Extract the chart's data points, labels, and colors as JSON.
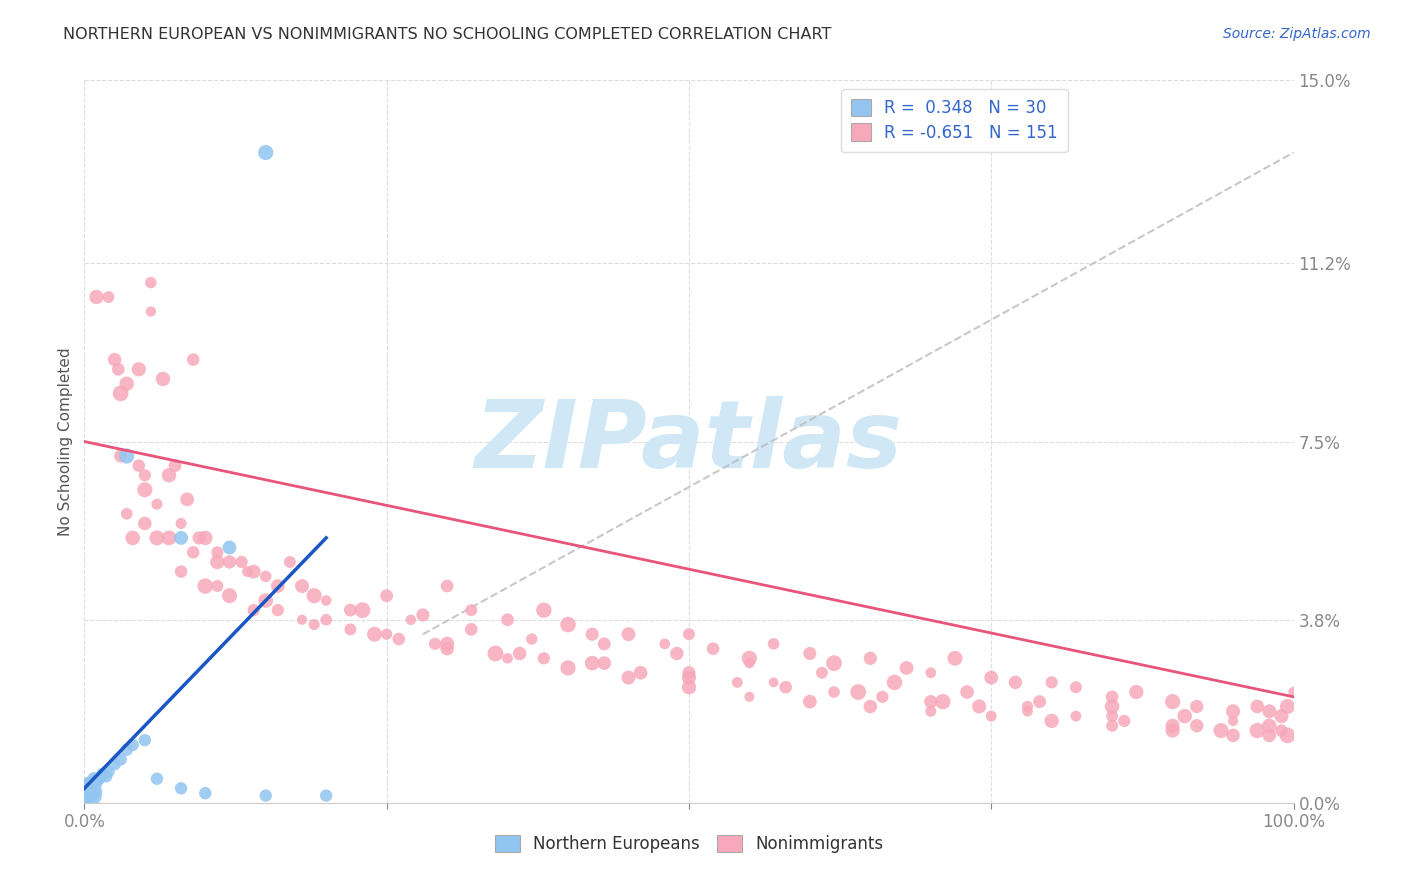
{
  "title": "NORTHERN EUROPEAN VS NONIMMIGRANTS NO SCHOOLING COMPLETED CORRELATION CHART",
  "source": "Source: ZipAtlas.com",
  "ylabel": "No Schooling Completed",
  "ytick_values": [
    0.0,
    3.8,
    7.5,
    11.2,
    15.0
  ],
  "ytick_labels": [
    "0.0%",
    "3.8%",
    "7.5%",
    "11.2%",
    "15.0%"
  ],
  "xlim": [
    0.0,
    100.0
  ],
  "ylim": [
    0.0,
    15.0
  ],
  "blue_color": "#92C5F0",
  "pink_color": "#F7A8BA",
  "blue_line_color": "#1A56C4",
  "pink_line_color": "#E8547A",
  "dashed_line_color": "#BBBBBB",
  "axis_label_color": "#3366CC",
  "title_color": "#333333",
  "watermark_text": "ZIPatlas",
  "watermark_color": "#D0E8F5",
  "blue_R": 0.348,
  "blue_N": 30,
  "pink_R": -0.651,
  "pink_N": 151,
  "blue_line_x": [
    0.0,
    20.0
  ],
  "blue_line_y": [
    0.3,
    5.5
  ],
  "pink_line_x": [
    0.0,
    100.0
  ],
  "pink_line_y": [
    7.5,
    2.2
  ],
  "dashed_line_x": [
    28.0,
    100.0
  ],
  "dashed_line_y": [
    3.5,
    13.5
  ],
  "blue_points": [
    [
      0.2,
      0.2
    ],
    [
      0.3,
      0.3
    ],
    [
      0.4,
      0.25
    ],
    [
      0.5,
      0.4
    ],
    [
      0.6,
      0.35
    ],
    [
      0.7,
      0.3
    ],
    [
      0.8,
      0.5
    ],
    [
      0.9,
      0.4
    ],
    [
      1.0,
      0.45
    ],
    [
      1.2,
      0.5
    ],
    [
      1.5,
      0.6
    ],
    [
      1.8,
      0.55
    ],
    [
      2.0,
      0.65
    ],
    [
      2.5,
      0.8
    ],
    [
      3.0,
      0.9
    ],
    [
      3.5,
      1.1
    ],
    [
      4.0,
      1.2
    ],
    [
      5.0,
      1.3
    ],
    [
      6.0,
      0.5
    ],
    [
      8.0,
      0.3
    ],
    [
      10.0,
      0.2
    ],
    [
      15.0,
      0.15
    ],
    [
      20.0,
      0.15
    ],
    [
      3.5,
      7.2
    ],
    [
      8.0,
      5.5
    ],
    [
      12.0,
      5.3
    ],
    [
      0.2,
      0.1
    ],
    [
      0.5,
      0.15
    ],
    [
      0.7,
      0.2
    ],
    [
      15.0,
      13.5
    ]
  ],
  "blue_sizes": [
    500,
    200,
    150,
    120,
    100,
    100,
    90,
    90,
    90,
    90,
    80,
    80,
    80,
    80,
    80,
    80,
    80,
    80,
    80,
    80,
    80,
    80,
    80,
    120,
    100,
    100,
    120,
    120,
    120,
    120
  ],
  "pink_points": [
    [
      1.0,
      10.5
    ],
    [
      2.0,
      10.5
    ],
    [
      5.5,
      10.8
    ],
    [
      2.5,
      9.2
    ],
    [
      3.5,
      8.7
    ],
    [
      2.8,
      9.0
    ],
    [
      3.0,
      8.5
    ],
    [
      4.5,
      9.0
    ],
    [
      3.0,
      7.2
    ],
    [
      4.5,
      7.0
    ],
    [
      5.0,
      6.8
    ],
    [
      6.5,
      8.8
    ],
    [
      7.5,
      7.0
    ],
    [
      5.5,
      10.2
    ],
    [
      9.0,
      9.2
    ],
    [
      4.0,
      5.5
    ],
    [
      6.0,
      6.2
    ],
    [
      8.0,
      5.8
    ],
    [
      9.5,
      5.5
    ],
    [
      12.0,
      5.0
    ],
    [
      14.0,
      4.8
    ],
    [
      5.0,
      6.5
    ],
    [
      7.0,
      6.8
    ],
    [
      8.5,
      6.3
    ],
    [
      10.0,
      5.5
    ],
    [
      11.0,
      5.2
    ],
    [
      13.0,
      5.0
    ],
    [
      15.0,
      4.7
    ],
    [
      17.0,
      5.0
    ],
    [
      18.0,
      4.5
    ],
    [
      20.0,
      4.2
    ],
    [
      22.0,
      4.0
    ],
    [
      25.0,
      4.3
    ],
    [
      28.0,
      3.9
    ],
    [
      30.0,
      4.5
    ],
    [
      32.0,
      4.0
    ],
    [
      35.0,
      3.8
    ],
    [
      38.0,
      4.0
    ],
    [
      40.0,
      3.7
    ],
    [
      42.0,
      3.5
    ],
    [
      45.0,
      3.5
    ],
    [
      48.0,
      3.3
    ],
    [
      50.0,
      3.5
    ],
    [
      52.0,
      3.2
    ],
    [
      55.0,
      3.0
    ],
    [
      57.0,
      3.3
    ],
    [
      60.0,
      3.1
    ],
    [
      62.0,
      2.9
    ],
    [
      65.0,
      3.0
    ],
    [
      68.0,
      2.8
    ],
    [
      70.0,
      2.7
    ],
    [
      72.0,
      3.0
    ],
    [
      75.0,
      2.6
    ],
    [
      77.0,
      2.5
    ],
    [
      80.0,
      2.5
    ],
    [
      82.0,
      2.4
    ],
    [
      85.0,
      2.2
    ],
    [
      87.0,
      2.3
    ],
    [
      90.0,
      2.1
    ],
    [
      92.0,
      2.0
    ],
    [
      95.0,
      1.9
    ],
    [
      97.0,
      2.0
    ],
    [
      98.0,
      1.9
    ],
    [
      99.0,
      1.8
    ],
    [
      99.5,
      2.0
    ],
    [
      100.0,
      2.3
    ],
    [
      15.0,
      4.2
    ],
    [
      20.0,
      3.8
    ],
    [
      25.0,
      3.5
    ],
    [
      30.0,
      3.2
    ],
    [
      35.0,
      3.0
    ],
    [
      40.0,
      2.8
    ],
    [
      45.0,
      2.6
    ],
    [
      50.0,
      2.4
    ],
    [
      55.0,
      2.2
    ],
    [
      60.0,
      2.1
    ],
    [
      65.0,
      2.0
    ],
    [
      70.0,
      1.9
    ],
    [
      75.0,
      1.8
    ],
    [
      80.0,
      1.7
    ],
    [
      85.0,
      1.6
    ],
    [
      90.0,
      1.5
    ],
    [
      95.0,
      1.4
    ],
    [
      99.0,
      1.5
    ],
    [
      10.0,
      4.5
    ],
    [
      12.0,
      4.3
    ],
    [
      16.0,
      4.0
    ],
    [
      18.0,
      3.8
    ],
    [
      22.0,
      3.6
    ],
    [
      26.0,
      3.4
    ],
    [
      30.0,
      3.3
    ],
    [
      34.0,
      3.1
    ],
    [
      38.0,
      3.0
    ],
    [
      42.0,
      2.9
    ],
    [
      46.0,
      2.7
    ],
    [
      50.0,
      2.6
    ],
    [
      54.0,
      2.5
    ],
    [
      58.0,
      2.4
    ],
    [
      62.0,
      2.3
    ],
    [
      66.0,
      2.2
    ],
    [
      70.0,
      2.1
    ],
    [
      74.0,
      2.0
    ],
    [
      78.0,
      1.9
    ],
    [
      82.0,
      1.8
    ],
    [
      86.0,
      1.7
    ],
    [
      90.0,
      1.6
    ],
    [
      94.0,
      1.5
    ],
    [
      98.0,
      1.4
    ],
    [
      6.0,
      5.5
    ],
    [
      8.0,
      4.8
    ],
    [
      11.0,
      4.5
    ],
    [
      14.0,
      4.0
    ],
    [
      19.0,
      3.7
    ],
    [
      24.0,
      3.5
    ],
    [
      29.0,
      3.3
    ],
    [
      36.0,
      3.1
    ],
    [
      43.0,
      2.9
    ],
    [
      50.0,
      2.7
    ],
    [
      57.0,
      2.5
    ],
    [
      64.0,
      2.3
    ],
    [
      71.0,
      2.1
    ],
    [
      78.0,
      2.0
    ],
    [
      85.0,
      1.8
    ],
    [
      92.0,
      1.6
    ],
    [
      97.0,
      1.5
    ],
    [
      99.5,
      1.4
    ],
    [
      3.5,
      6.0
    ],
    [
      5.0,
      5.8
    ],
    [
      7.0,
      5.5
    ],
    [
      9.0,
      5.2
    ],
    [
      11.0,
      5.0
    ],
    [
      13.5,
      4.8
    ],
    [
      16.0,
      4.5
    ],
    [
      19.0,
      4.3
    ],
    [
      23.0,
      4.0
    ],
    [
      27.0,
      3.8
    ],
    [
      32.0,
      3.6
    ],
    [
      37.0,
      3.4
    ],
    [
      43.0,
      3.3
    ],
    [
      49.0,
      3.1
    ],
    [
      55.0,
      2.9
    ],
    [
      61.0,
      2.7
    ],
    [
      67.0,
      2.5
    ],
    [
      73.0,
      2.3
    ],
    [
      79.0,
      2.1
    ],
    [
      85.0,
      2.0
    ],
    [
      91.0,
      1.8
    ],
    [
      95.0,
      1.7
    ],
    [
      98.0,
      1.6
    ]
  ]
}
